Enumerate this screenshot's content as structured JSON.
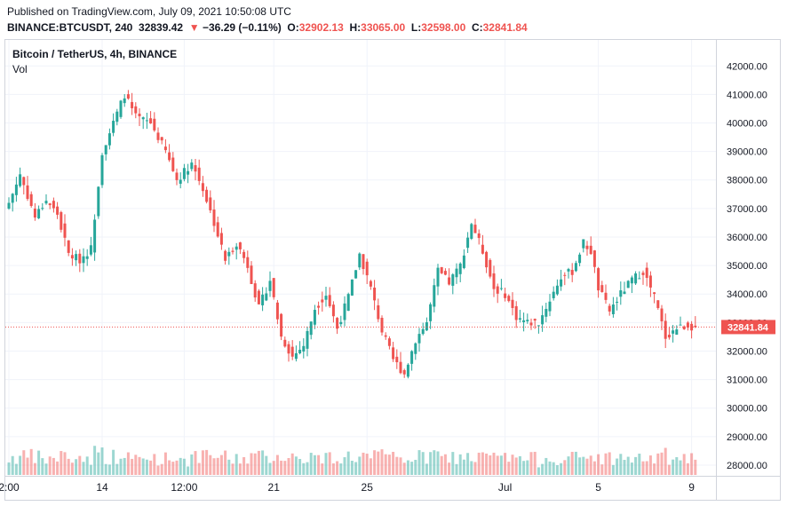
{
  "header": {
    "published": "Published on TradingView.com, July 09, 2021 10:50:08 UTC",
    "symbol": "BINANCE:BTCUSDT, 240",
    "last": "32839.42",
    "change_arrow": "▼",
    "change": "−36.29 (−0.11%)",
    "o_label": "O:",
    "o_value": "32902.13",
    "h_label": "H:",
    "h_value": "33065.00",
    "l_label": "L:",
    "l_value": "32598.00",
    "c_label": "C:",
    "c_value": "32841.84"
  },
  "chart_data": {
    "type": "candlestick",
    "title": "Bitcoin / TetherUS, 4h, BINANCE",
    "subtitle": "Vol",
    "ylim": [
      27500,
      42600
    ],
    "yticks": [
      "42000.00",
      "41000.00",
      "40000.00",
      "39000.00",
      "38000.00",
      "37000.00",
      "36000.00",
      "35000.00",
      "34000.00",
      "33000.00",
      "32000.00",
      "31000.00",
      "30000.00",
      "29000.00",
      "28000.00"
    ],
    "xticks": [
      {
        "label": "2:00",
        "bar": 0
      },
      {
        "label": "14",
        "bar": 25
      },
      {
        "label": "12:00",
        "bar": 47
      },
      {
        "label": "21",
        "bar": 71
      },
      {
        "label": "25",
        "bar": 96
      },
      {
        "label": "Jul",
        "bar": 133
      },
      {
        "label": "5",
        "bar": 158
      },
      {
        "label": "9",
        "bar": 183
      }
    ],
    "last_price": "32841.84",
    "last_price_value": 32841.84,
    "up_color": "#26a69a",
    "down_color": "#ef5350",
    "close_points": [
      [
        0,
        37200
      ],
      [
        3,
        38200
      ],
      [
        7,
        36700
      ],
      [
        10,
        37300
      ],
      [
        13,
        36800
      ],
      [
        16,
        35400
      ],
      [
        19,
        35200
      ],
      [
        22,
        35600
      ],
      [
        25,
        39000
      ],
      [
        28,
        40000
      ],
      [
        31,
        41000
      ],
      [
        34,
        40200
      ],
      [
        38,
        40000
      ],
      [
        42,
        39000
      ],
      [
        45,
        38000
      ],
      [
        49,
        38600
      ],
      [
        52,
        37700
      ],
      [
        55,
        36500
      ],
      [
        58,
        35200
      ],
      [
        61,
        35800
      ],
      [
        64,
        35000
      ],
      [
        67,
        33500
      ],
      [
        70,
        34500
      ],
      [
        73,
        32500
      ],
      [
        76,
        31800
      ],
      [
        79,
        32200
      ],
      [
        82,
        33500
      ],
      [
        85,
        34000
      ],
      [
        88,
        32800
      ],
      [
        91,
        33900
      ],
      [
        94,
        35400
      ],
      [
        97,
        34200
      ],
      [
        100,
        32700
      ],
      [
        103,
        31700
      ],
      [
        106,
        31200
      ],
      [
        109,
        32400
      ],
      [
        112,
        33000
      ],
      [
        115,
        34800
      ],
      [
        118,
        34400
      ],
      [
        121,
        35000
      ],
      [
        124,
        36500
      ],
      [
        127,
        35500
      ],
      [
        130,
        34200
      ],
      [
        133,
        34000
      ],
      [
        136,
        33200
      ],
      [
        139,
        33000
      ],
      [
        142,
        33000
      ],
      [
        145,
        33800
      ],
      [
        148,
        34600
      ],
      [
        151,
        34800
      ],
      [
        154,
        35800
      ],
      [
        156,
        35500
      ],
      [
        158,
        34200
      ],
      [
        161,
        33400
      ],
      [
        164,
        34000
      ],
      [
        167,
        34500
      ],
      [
        170,
        34800
      ],
      [
        173,
        33900
      ],
      [
        176,
        32500
      ],
      [
        179,
        32800
      ],
      [
        182,
        32900
      ],
      [
        184,
        32842
      ]
    ]
  }
}
